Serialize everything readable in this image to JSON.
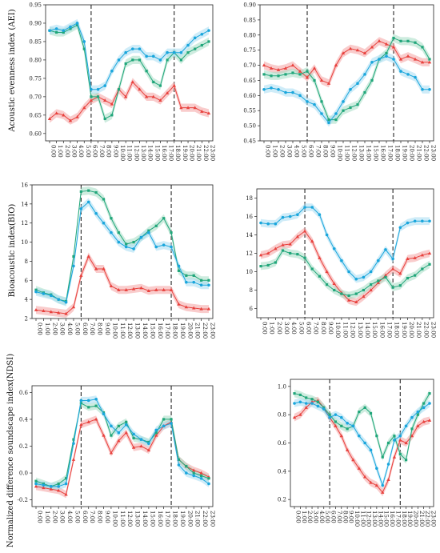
{
  "figure": {
    "series_styles": [
      {
        "color": "#e8413d",
        "band": "#f4a3a3",
        "marker": "triangle"
      },
      {
        "color": "#20a67a",
        "band": "#a5dcc5",
        "marker": "square"
      },
      {
        "color": "#1aa6dc",
        "band": "#a8dcf2",
        "marker": "circle"
      }
    ],
    "x_tick_labels": [
      "0:00",
      "1:00",
      "2:00",
      "3:00",
      "4:00",
      "5:00",
      "6:00",
      "7:00",
      "8:00",
      "9:00",
      "10:00",
      "11:00",
      "12:00",
      "13:00",
      "14:00",
      "15:00",
      "16:00",
      "17:00",
      "18:00",
      "19:00",
      "20:00",
      "21:00",
      "22:00",
      "23:00"
    ],
    "dashed_lines_at_hours": [
      6,
      18
    ]
  },
  "chart_data": [
    {
      "type": "line",
      "panel": "top-left",
      "ylabel": "Acoustic evenness index (AEI)",
      "ylim": [
        0.58,
        0.95
      ],
      "yticks": [
        0.6,
        0.65,
        0.7,
        0.75,
        0.8,
        0.85,
        0.9,
        0.95
      ],
      "ytick_labels": [
        "0.60",
        "0.65",
        "0.70",
        "0.75",
        "0.80",
        "0.85",
        "0.90",
        "0.95"
      ],
      "x": [
        0,
        1,
        2,
        3,
        4,
        5,
        6,
        7,
        8,
        9,
        10,
        11,
        12,
        13,
        14,
        15,
        16,
        17,
        18,
        19,
        20,
        21,
        22,
        23
      ],
      "series": [
        {
          "values": [
            0.64,
            0.655,
            0.65,
            0.635,
            0.645,
            0.67,
            0.69,
            0.7,
            0.69,
            0.68,
            0.72,
            0.7,
            0.74,
            0.72,
            0.7,
            0.7,
            0.69,
            0.71,
            0.73,
            0.67,
            0.67,
            0.67,
            0.66,
            0.655
          ]
        },
        {
          "values": [
            0.88,
            0.875,
            0.875,
            0.885,
            0.895,
            0.83,
            0.7,
            0.7,
            0.64,
            0.65,
            0.72,
            0.79,
            0.8,
            0.8,
            0.77,
            0.74,
            0.73,
            0.8,
            0.82,
            0.8,
            0.82,
            0.83,
            0.84,
            0.85
          ]
        },
        {
          "values": [
            0.88,
            0.885,
            0.88,
            0.89,
            0.9,
            0.85,
            0.72,
            0.72,
            0.73,
            0.77,
            0.8,
            0.82,
            0.83,
            0.83,
            0.81,
            0.81,
            0.8,
            0.82,
            0.82,
            0.82,
            0.84,
            0.86,
            0.87,
            0.88
          ]
        }
      ]
    },
    {
      "type": "line",
      "panel": "top-right",
      "ylabel": "",
      "ylim": [
        0.45,
        0.9
      ],
      "yticks": [
        0.45,
        0.5,
        0.55,
        0.6,
        0.65,
        0.7,
        0.75,
        0.8,
        0.85,
        0.9
      ],
      "ytick_labels": [
        "0.45",
        "0.50",
        "0.55",
        "0.60",
        "0.65",
        "0.70",
        "0.75",
        "0.80",
        "0.85",
        "0.90"
      ],
      "x": [
        0,
        1,
        2,
        3,
        4,
        5,
        6,
        7,
        8,
        9,
        10,
        11,
        12,
        13,
        14,
        15,
        16,
        17,
        18,
        19,
        20,
        21,
        22,
        23
      ],
      "series": [
        {
          "values": [
            0.7,
            0.69,
            0.685,
            0.69,
            0.7,
            0.68,
            0.66,
            0.69,
            0.65,
            0.64,
            0.7,
            0.74,
            0.755,
            0.75,
            0.74,
            0.76,
            0.78,
            0.77,
            0.76,
            0.72,
            0.73,
            0.72,
            0.71,
            0.71
          ]
        },
        {
          "values": [
            0.67,
            0.665,
            0.665,
            0.67,
            0.675,
            0.67,
            0.68,
            0.65,
            0.58,
            0.52,
            0.52,
            0.55,
            0.56,
            0.57,
            0.61,
            0.65,
            0.72,
            0.74,
            0.79,
            0.78,
            0.78,
            0.775,
            0.76,
            0.72
          ]
        },
        {
          "values": [
            0.62,
            0.625,
            0.62,
            0.61,
            0.61,
            0.6,
            0.58,
            0.57,
            0.54,
            0.51,
            0.54,
            0.58,
            0.62,
            0.64,
            0.67,
            0.71,
            0.72,
            0.73,
            0.72,
            0.68,
            0.67,
            0.66,
            0.62,
            0.62
          ]
        }
      ]
    },
    {
      "type": "line",
      "panel": "middle-left",
      "ylabel": "Bioacoustic index(BIO)",
      "ylim": [
        2,
        16
      ],
      "yticks": [
        2,
        4,
        6,
        8,
        10,
        12,
        14,
        16
      ],
      "ytick_labels": [
        "2",
        "4",
        "6",
        "8",
        "10",
        "12",
        "14",
        "16"
      ],
      "x": [
        0,
        1,
        2,
        3,
        4,
        5,
        6,
        7,
        8,
        9,
        10,
        11,
        12,
        13,
        14,
        15,
        16,
        17,
        18,
        19,
        20,
        21,
        22,
        23
      ],
      "series": [
        {
          "values": [
            2.9,
            2.8,
            2.7,
            2.6,
            2.5,
            3.2,
            6.5,
            8.5,
            7.2,
            7.2,
            5.4,
            5.0,
            5.0,
            5.1,
            5.2,
            4.9,
            5.0,
            5.0,
            5.0,
            3.5,
            3.2,
            3.1,
            3.0,
            3.0
          ]
        },
        {
          "values": [
            5.0,
            4.7,
            4.5,
            4.0,
            3.8,
            8.5,
            15.3,
            15.4,
            15.2,
            14.5,
            12.5,
            11.0,
            9.8,
            10.0,
            10.5,
            11.2,
            11.7,
            12.5,
            11.0,
            7.0,
            6.5,
            6.5,
            6.0,
            6.0
          ]
        },
        {
          "values": [
            4.8,
            4.6,
            4.4,
            4.0,
            3.7,
            7.5,
            13.5,
            14.2,
            13.0,
            12.0,
            11.0,
            10.0,
            9.5,
            9.3,
            10.5,
            11.0,
            9.5,
            9.7,
            9.5,
            7.5,
            5.8,
            5.8,
            5.5,
            5.5
          ]
        }
      ]
    },
    {
      "type": "line",
      "panel": "middle-right",
      "ylabel": "",
      "ylim": [
        5,
        19
      ],
      "yticks": [
        6,
        8,
        10,
        12,
        14,
        16,
        18
      ],
      "ytick_labels": [
        "6",
        "8",
        "10",
        "12",
        "14",
        "16",
        "18"
      ],
      "x": [
        0,
        1,
        2,
        3,
        4,
        5,
        6,
        7,
        8,
        9,
        10,
        11,
        12,
        13,
        14,
        15,
        16,
        17,
        18,
        19,
        20,
        21,
        22,
        23
      ],
      "series": [
        {
          "values": [
            11.8,
            12.0,
            12.5,
            12.9,
            13.0,
            13.8,
            14.4,
            13.3,
            11.5,
            10.0,
            8.7,
            7.7,
            6.9,
            6.7,
            7.3,
            8.0,
            8.8,
            9.6,
            10.3,
            9.8,
            11.4,
            11.5,
            11.8,
            12.0
          ]
        },
        {
          "values": [
            10.6,
            10.7,
            11.0,
            12.3,
            12.0,
            11.9,
            11.5,
            10.3,
            9.5,
            8.6,
            8.0,
            7.6,
            7.4,
            7.6,
            8.0,
            8.6,
            9.0,
            9.4,
            8.3,
            8.5,
            9.3,
            9.6,
            10.3,
            10.8
          ]
        },
        {
          "values": [
            15.3,
            15.2,
            15.2,
            15.9,
            16.0,
            16.2,
            17.0,
            17.0,
            16.2,
            14.0,
            12.5,
            11.2,
            10.0,
            9.2,
            9.4,
            10.0,
            11.2,
            12.4,
            11.4,
            14.8,
            15.3,
            15.5,
            15.5,
            15.5
          ]
        }
      ]
    },
    {
      "type": "line",
      "panel": "bottom-left",
      "ylabel": "Normalized difference soundscape index(NDSI)",
      "ylim": [
        -0.25,
        0.65
      ],
      "yticks": [
        -0.2,
        0.0,
        0.2,
        0.4,
        0.6
      ],
      "ytick_labels": [
        "-0.2",
        "0.0",
        "0.2",
        "0.4",
        "0.6"
      ],
      "x": [
        0,
        1,
        2,
        3,
        4,
        5,
        6,
        7,
        8,
        9,
        10,
        11,
        12,
        13,
        14,
        15,
        16,
        17,
        18,
        19,
        20,
        21,
        22,
        23
      ],
      "series": [
        {
          "values": [
            -0.1,
            -0.11,
            -0.12,
            -0.13,
            -0.16,
            0.1,
            0.36,
            0.38,
            0.4,
            0.28,
            0.15,
            0.24,
            0.3,
            0.19,
            0.2,
            0.17,
            0.28,
            0.35,
            0.38,
            0.1,
            0.05,
            0.02,
            0.0,
            -0.03
          ]
        },
        {
          "values": [
            -0.06,
            -0.08,
            -0.1,
            -0.08,
            -0.04,
            0.25,
            0.52,
            0.49,
            0.5,
            0.45,
            0.28,
            0.35,
            0.38,
            0.26,
            0.25,
            0.23,
            0.3,
            0.4,
            0.4,
            0.1,
            0.05,
            0.0,
            -0.02,
            -0.04
          ]
        },
        {
          "values": [
            -0.08,
            -0.09,
            -0.1,
            -0.1,
            -0.08,
            0.22,
            0.54,
            0.54,
            0.55,
            0.44,
            0.35,
            0.3,
            0.36,
            0.29,
            0.25,
            0.22,
            0.32,
            0.35,
            0.37,
            0.06,
            0.0,
            -0.02,
            -0.04,
            -0.08
          ]
        }
      ]
    },
    {
      "type": "line",
      "panel": "bottom-right",
      "ylabel": "",
      "ylim": [
        0.15,
        1.05
      ],
      "yticks": [
        0.2,
        0.4,
        0.6,
        0.8,
        1.0
      ],
      "ytick_labels": [
        "0.2",
        "0.4",
        "0.6",
        "0.8",
        "1.0"
      ],
      "x": [
        0,
        1,
        2,
        3,
        4,
        5,
        6,
        7,
        8,
        9,
        10,
        11,
        12,
        13,
        14,
        15,
        16,
        17,
        18,
        19,
        20,
        21,
        22,
        23
      ],
      "series": [
        {
          "values": [
            0.78,
            0.8,
            0.85,
            0.89,
            0.9,
            0.85,
            0.78,
            0.72,
            0.65,
            0.55,
            0.48,
            0.42,
            0.36,
            0.32,
            0.3,
            0.25,
            0.34,
            0.5,
            0.62,
            0.6,
            0.65,
            0.72,
            0.75,
            0.76
          ]
        },
        {
          "values": [
            0.95,
            0.94,
            0.92,
            0.91,
            0.89,
            0.85,
            0.8,
            0.75,
            0.72,
            0.7,
            0.72,
            0.82,
            0.85,
            0.81,
            0.65,
            0.5,
            0.6,
            0.65,
            0.52,
            0.48,
            0.7,
            0.8,
            0.88,
            0.95
          ]
        },
        {
          "values": [
            0.88,
            0.89,
            0.88,
            0.88,
            0.86,
            0.84,
            0.78,
            0.8,
            0.78,
            0.74,
            0.72,
            0.65,
            0.6,
            0.55,
            0.42,
            0.3,
            0.45,
            0.62,
            0.65,
            0.72,
            0.78,
            0.82,
            0.85,
            0.88
          ]
        }
      ]
    }
  ]
}
